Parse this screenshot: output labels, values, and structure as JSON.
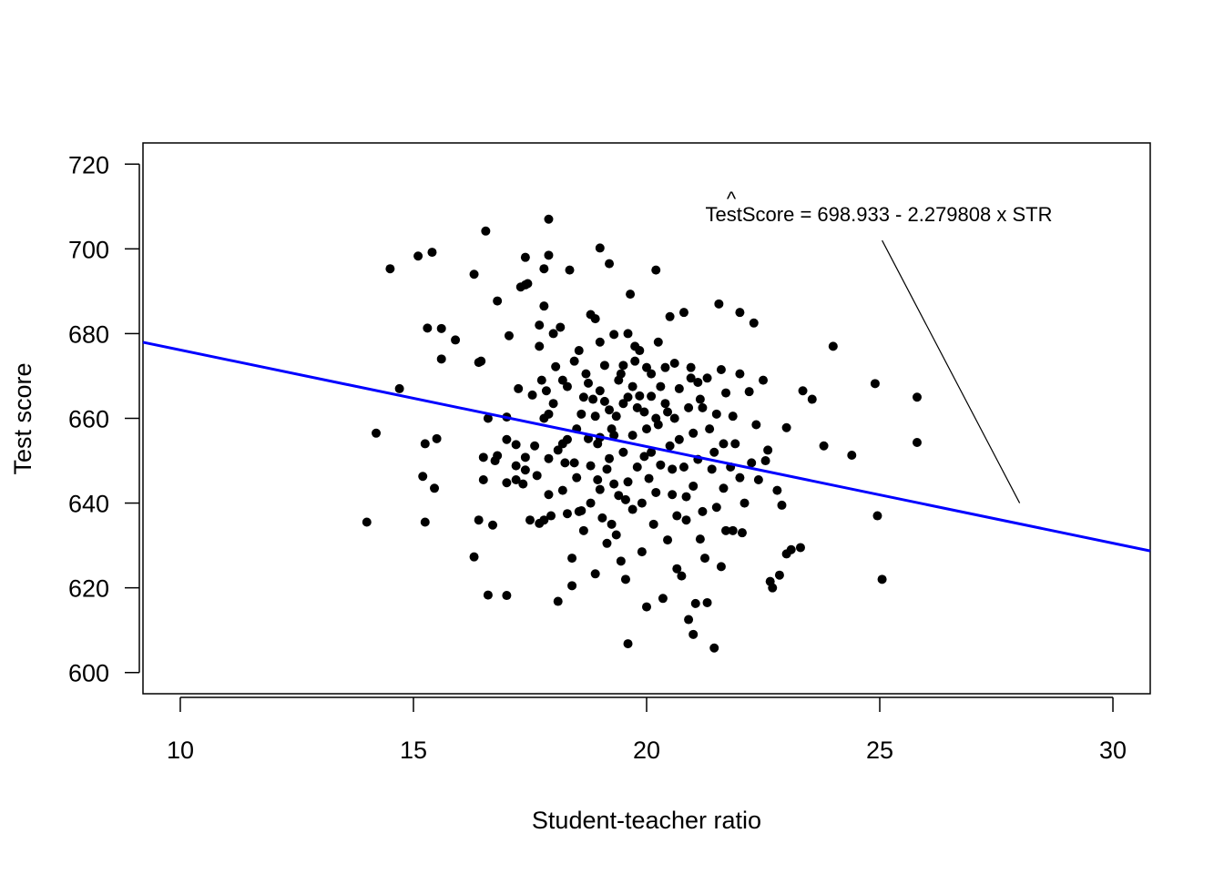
{
  "chart_data": {
    "type": "scatter",
    "title": "",
    "xlabel": "Student-teacher ratio",
    "ylabel": "Test score",
    "xlim": [
      9.2,
      30.8
    ],
    "ylim": [
      595,
      725
    ],
    "x_ticks": [
      10,
      15,
      20,
      25,
      30
    ],
    "y_ticks": [
      600,
      620,
      640,
      660,
      680,
      700,
      720
    ],
    "grid": false,
    "points_color": "#000000",
    "regression": {
      "intercept": 698.933,
      "slope": -2.279808,
      "color": "#0000ff",
      "label": "TestScore = 698.933 - 2.279808 x STR",
      "hat_symbol": "^"
    },
    "annotation_pointer": {
      "from": [
        25.05,
        702
      ],
      "to": [
        28.0,
        640
      ]
    },
    "points": [
      [
        14.0,
        635.5
      ],
      [
        14.2,
        656.5
      ],
      [
        14.5,
        695.3
      ],
      [
        14.7,
        667.0
      ],
      [
        15.1,
        698.3
      ],
      [
        15.2,
        646.3
      ],
      [
        15.25,
        635.5
      ],
      [
        15.25,
        654.0
      ],
      [
        15.3,
        681.3
      ],
      [
        15.4,
        699.2
      ],
      [
        15.45,
        643.5
      ],
      [
        15.5,
        655.2
      ],
      [
        15.6,
        674.0
      ],
      [
        15.6,
        681.2
      ],
      [
        15.9,
        678.5
      ],
      [
        16.3,
        694.0
      ],
      [
        16.3,
        627.3
      ],
      [
        16.4,
        673.2
      ],
      [
        16.4,
        636.0
      ],
      [
        16.45,
        673.5
      ],
      [
        16.5,
        650.8
      ],
      [
        16.5,
        645.5
      ],
      [
        16.55,
        704.2
      ],
      [
        16.6,
        618.3
      ],
      [
        16.6,
        660.0
      ],
      [
        16.7,
        634.8
      ],
      [
        16.75,
        650.0
      ],
      [
        16.8,
        687.7
      ],
      [
        16.8,
        651.2
      ],
      [
        17.0,
        618.2
      ],
      [
        17.0,
        644.8
      ],
      [
        17.0,
        655.0
      ],
      [
        17.0,
        660.3
      ],
      [
        17.05,
        679.5
      ],
      [
        17.2,
        653.8
      ],
      [
        17.2,
        648.8
      ],
      [
        17.2,
        645.5
      ],
      [
        17.3,
        691.0
      ],
      [
        17.35,
        644.5
      ],
      [
        17.4,
        691.5
      ],
      [
        17.4,
        698.0
      ],
      [
        17.4,
        650.8
      ],
      [
        17.4,
        647.8
      ],
      [
        17.45,
        691.8
      ],
      [
        17.5,
        636.0
      ],
      [
        17.6,
        653.5
      ],
      [
        17.65,
        646.5
      ],
      [
        17.7,
        677.0
      ],
      [
        17.7,
        635.2
      ],
      [
        17.7,
        682.0
      ],
      [
        17.75,
        669.0
      ],
      [
        17.8,
        686.5
      ],
      [
        17.8,
        695.3
      ],
      [
        17.8,
        660.0
      ],
      [
        17.8,
        636.0
      ],
      [
        17.85,
        666.5
      ],
      [
        17.9,
        698.5
      ],
      [
        17.9,
        707.0
      ],
      [
        17.9,
        661.0
      ],
      [
        17.9,
        650.5
      ],
      [
        17.9,
        642.0
      ],
      [
        17.95,
        637.0
      ],
      [
        18.0,
        663.5
      ],
      [
        18.0,
        680.0
      ],
      [
        18.05,
        672.2
      ],
      [
        18.1,
        616.8
      ],
      [
        18.1,
        652.5
      ],
      [
        18.15,
        681.5
      ],
      [
        18.2,
        669.0
      ],
      [
        18.2,
        654.0
      ],
      [
        18.2,
        643.0
      ],
      [
        18.25,
        649.5
      ],
      [
        18.3,
        655.0
      ],
      [
        18.3,
        637.5
      ],
      [
        18.3,
        667.5
      ],
      [
        18.35,
        695.0
      ],
      [
        18.4,
        627.0
      ],
      [
        18.4,
        620.5
      ],
      [
        18.45,
        673.5
      ],
      [
        18.5,
        657.5
      ],
      [
        18.5,
        646.0
      ],
      [
        18.55,
        676.0
      ],
      [
        18.6,
        638.2
      ],
      [
        18.6,
        661.0
      ],
      [
        18.65,
        633.5
      ],
      [
        18.7,
        670.5
      ],
      [
        18.75,
        668.3
      ],
      [
        18.75,
        655.2
      ],
      [
        18.8,
        684.5
      ],
      [
        18.8,
        648.8
      ],
      [
        18.8,
        640.0
      ],
      [
        18.85,
        664.5
      ],
      [
        18.9,
        683.5
      ],
      [
        18.9,
        660.5
      ],
      [
        18.9,
        623.3
      ],
      [
        18.95,
        645.5
      ],
      [
        19.0,
        700.2
      ],
      [
        19.0,
        678.0
      ],
      [
        19.0,
        666.5
      ],
      [
        19.0,
        655.5
      ],
      [
        19.0,
        643.2
      ],
      [
        19.05,
        636.5
      ],
      [
        19.1,
        664.0
      ],
      [
        19.1,
        672.5
      ],
      [
        19.15,
        630.5
      ],
      [
        19.2,
        662.0
      ],
      [
        19.2,
        650.5
      ],
      [
        19.2,
        696.5
      ],
      [
        19.25,
        635.0
      ],
      [
        19.3,
        679.8
      ],
      [
        19.3,
        656.0
      ],
      [
        19.3,
        644.5
      ],
      [
        19.35,
        660.5
      ],
      [
        19.4,
        669.0
      ],
      [
        19.4,
        641.8
      ],
      [
        19.45,
        626.3
      ],
      [
        19.5,
        672.5
      ],
      [
        19.5,
        663.5
      ],
      [
        19.5,
        652.0
      ],
      [
        19.55,
        622.0
      ],
      [
        19.6,
        606.8
      ],
      [
        19.6,
        680.0
      ],
      [
        19.6,
        665.0
      ],
      [
        19.6,
        645.0
      ],
      [
        19.65,
        689.3
      ],
      [
        19.7,
        667.5
      ],
      [
        19.7,
        656.0
      ],
      [
        19.7,
        638.5
      ],
      [
        19.75,
        677.0
      ],
      [
        19.8,
        662.5
      ],
      [
        19.8,
        648.5
      ],
      [
        19.85,
        665.3
      ],
      [
        19.9,
        628.5
      ],
      [
        19.9,
        640.0
      ],
      [
        19.95,
        661.5
      ],
      [
        20.0,
        615.5
      ],
      [
        20.0,
        672.0
      ],
      [
        20.0,
        657.5
      ],
      [
        20.05,
        645.8
      ],
      [
        20.1,
        670.5
      ],
      [
        20.1,
        665.2
      ],
      [
        20.1,
        652.0
      ],
      [
        20.15,
        635.0
      ],
      [
        20.2,
        695.0
      ],
      [
        20.2,
        660.0
      ],
      [
        20.2,
        642.5
      ],
      [
        20.25,
        678.0
      ],
      [
        20.3,
        667.5
      ],
      [
        20.3,
        649.0
      ],
      [
        20.35,
        617.5
      ],
      [
        20.4,
        672.0
      ],
      [
        20.4,
        663.5
      ],
      [
        20.45,
        631.3
      ],
      [
        20.5,
        684.0
      ],
      [
        20.5,
        653.5
      ],
      [
        20.55,
        642.0
      ],
      [
        20.6,
        673.0
      ],
      [
        20.6,
        660.0
      ],
      [
        20.65,
        624.5
      ],
      [
        20.7,
        667.0
      ],
      [
        20.7,
        655.0
      ],
      [
        20.75,
        622.8
      ],
      [
        20.8,
        685.0
      ],
      [
        20.8,
        648.5
      ],
      [
        20.85,
        636.0
      ],
      [
        20.9,
        662.5
      ],
      [
        20.9,
        612.5
      ],
      [
        20.95,
        672.0
      ],
      [
        21.0,
        609.0
      ],
      [
        21.0,
        656.5
      ],
      [
        21.0,
        644.0
      ],
      [
        21.05,
        616.3
      ],
      [
        21.1,
        668.5
      ],
      [
        21.1,
        650.3
      ],
      [
        21.15,
        631.5
      ],
      [
        21.2,
        662.5
      ],
      [
        21.2,
        638.0
      ],
      [
        21.25,
        627.0
      ],
      [
        21.3,
        616.5
      ],
      [
        21.3,
        669.5
      ],
      [
        21.35,
        657.5
      ],
      [
        21.4,
        648.0
      ],
      [
        21.45,
        605.8
      ],
      [
        21.5,
        639.0
      ],
      [
        21.5,
        661.0
      ],
      [
        21.55,
        687.0
      ],
      [
        21.6,
        671.5
      ],
      [
        21.6,
        625.0
      ],
      [
        21.65,
        654.0
      ],
      [
        21.7,
        633.5
      ],
      [
        21.7,
        666.0
      ],
      [
        21.8,
        648.5
      ],
      [
        21.85,
        633.5
      ],
      [
        21.9,
        654.0
      ],
      [
        22.0,
        670.5
      ],
      [
        22.0,
        685.0
      ],
      [
        22.0,
        646.0
      ],
      [
        22.05,
        633.0
      ],
      [
        22.1,
        640.0
      ],
      [
        22.2,
        666.3
      ],
      [
        22.25,
        649.5
      ],
      [
        22.3,
        682.5
      ],
      [
        22.35,
        658.5
      ],
      [
        22.4,
        645.5
      ],
      [
        22.5,
        669.0
      ],
      [
        22.6,
        652.5
      ],
      [
        22.65,
        621.5
      ],
      [
        22.7,
        620.0
      ],
      [
        22.8,
        643.0
      ],
      [
        22.85,
        623.0
      ],
      [
        22.9,
        639.5
      ],
      [
        23.0,
        657.8
      ],
      [
        23.0,
        628.0
      ],
      [
        23.1,
        629.0
      ],
      [
        23.3,
        629.5
      ],
      [
        23.35,
        666.5
      ],
      [
        23.55,
        664.5
      ],
      [
        23.8,
        653.5
      ],
      [
        24.0,
        677.0
      ],
      [
        24.4,
        651.3
      ],
      [
        24.9,
        668.2
      ],
      [
        24.95,
        637.0
      ],
      [
        25.05,
        622.0
      ],
      [
        25.8,
        654.3
      ],
      [
        25.8,
        665.0
      ],
      [
        19.45,
        670.5
      ],
      [
        19.15,
        648.0
      ],
      [
        20.25,
        658.5
      ],
      [
        19.75,
        673.5
      ],
      [
        18.65,
        665.0
      ],
      [
        21.15,
        664.5
      ],
      [
        20.55,
        648.0
      ],
      [
        19.25,
        657.5
      ],
      [
        18.45,
        649.5
      ],
      [
        21.85,
        660.5
      ],
      [
        20.85,
        641.5
      ],
      [
        19.95,
        651.0
      ],
      [
        18.95,
        654.0
      ],
      [
        22.55,
        650.0
      ],
      [
        17.55,
        665.5
      ],
      [
        20.45,
        661.5
      ],
      [
        21.45,
        652.0
      ],
      [
        19.55,
        640.8
      ],
      [
        18.55,
        638.0
      ],
      [
        19.35,
        632.5
      ],
      [
        20.65,
        637.0
      ],
      [
        21.65,
        643.5
      ],
      [
        17.25,
        667.0
      ],
      [
        20.95,
        669.5
      ],
      [
        19.85,
        676.0
      ]
    ]
  }
}
